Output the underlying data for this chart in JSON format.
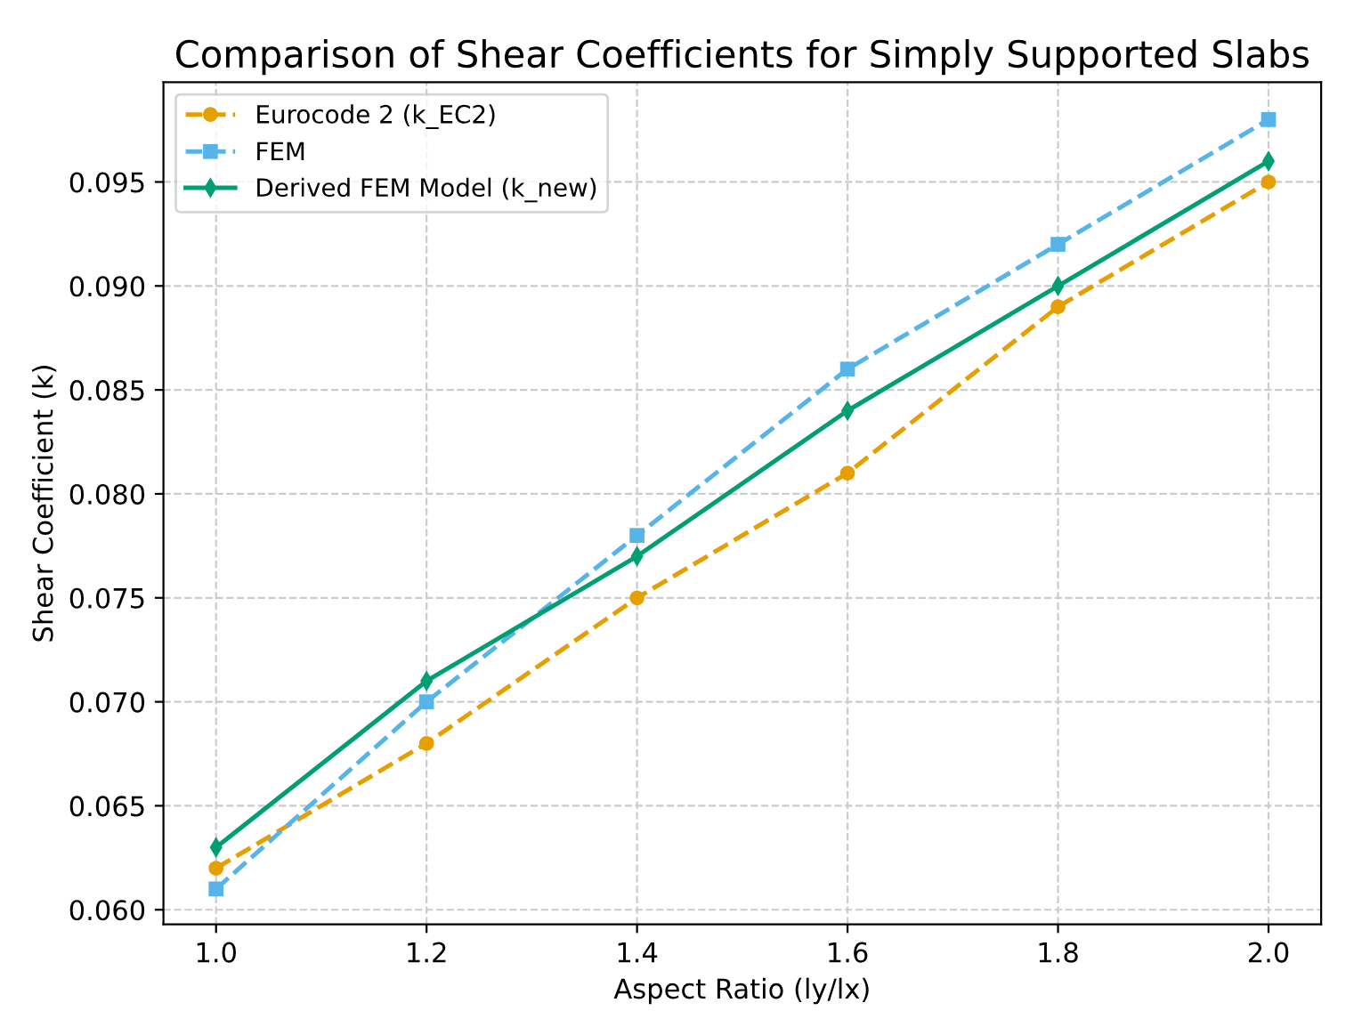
{
  "chart_data": {
    "type": "line",
    "title": "Comparison of Shear Coefficients for Simply Supported Slabs",
    "xlabel": "Aspect Ratio (ly/lx)",
    "ylabel": "Shear Coefficient (k)",
    "x": [
      1.0,
      1.2,
      1.4,
      1.6,
      1.8,
      2.0
    ],
    "series": [
      {
        "name": "Eurocode 2 (k_EC2)",
        "color": "#e69f00",
        "values": [
          0.062,
          0.068,
          0.075,
          0.081,
          0.089,
          0.095
        ],
        "marker": "circle",
        "line_style": "dashed"
      },
      {
        "name": "FEM",
        "color": "#56b4e9",
        "values": [
          0.061,
          0.07,
          0.078,
          0.086,
          0.092,
          0.098
        ],
        "marker": "square",
        "line_style": "dashed"
      },
      {
        "name": "Derived FEM Model (k_new)",
        "color": "#009e73",
        "values": [
          0.063,
          0.071,
          0.077,
          0.084,
          0.09,
          0.096
        ],
        "marker": "diamond",
        "line_style": "solid"
      }
    ],
    "xlim": [
      0.95,
      2.05
    ],
    "xticks": [
      {
        "value": 1.0,
        "label": "1.0"
      },
      {
        "value": 1.2,
        "label": "1.2"
      },
      {
        "value": 1.4,
        "label": "1.4"
      },
      {
        "value": 1.6,
        "label": "1.6"
      },
      {
        "value": 1.8,
        "label": "1.8"
      },
      {
        "value": 2.0,
        "label": "2.0"
      }
    ],
    "ylim": [
      0.0593,
      0.0998
    ],
    "yticks": [
      {
        "value": 0.06,
        "label": "0.060"
      },
      {
        "value": 0.065,
        "label": "0.065"
      },
      {
        "value": 0.07,
        "label": "0.070"
      },
      {
        "value": 0.075,
        "label": "0.075"
      },
      {
        "value": 0.08,
        "label": "0.080"
      },
      {
        "value": 0.085,
        "label": "0.085"
      },
      {
        "value": 0.09,
        "label": "0.090"
      },
      {
        "value": 0.095,
        "label": "0.095"
      }
    ],
    "grid": true,
    "legend": "top left"
  }
}
